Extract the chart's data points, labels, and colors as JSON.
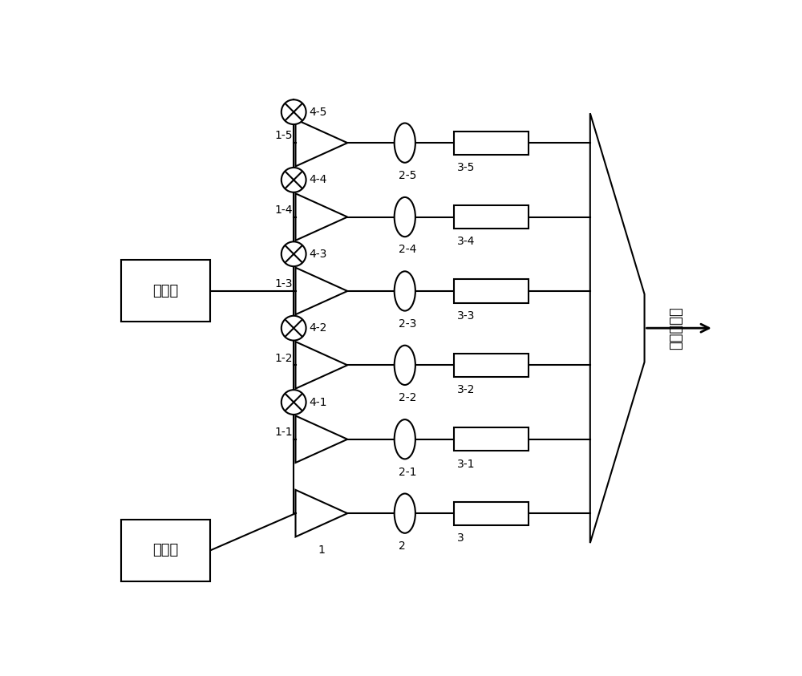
{
  "bg_color": "#ffffff",
  "line_color": "#000000",
  "line_width": 1.5,
  "amp_labels": [
    "1-5",
    "1-4",
    "1-3",
    "1-2",
    "1-1",
    "1"
  ],
  "lens_labels": [
    "2-5",
    "2-4",
    "2-3",
    "2-2",
    "2-1",
    "2"
  ],
  "filter_labels": [
    "3-5",
    "3-4",
    "3-3",
    "3-2",
    "3-1",
    "3"
  ],
  "mod_labels": [
    "4-5",
    "4-4",
    "4-3",
    "4-2",
    "4-1"
  ],
  "controller_label": "控制器",
  "laser_label": "激光器",
  "combiner_label": "光束合成器",
  "fig_width": 10.0,
  "fig_height": 8.43
}
